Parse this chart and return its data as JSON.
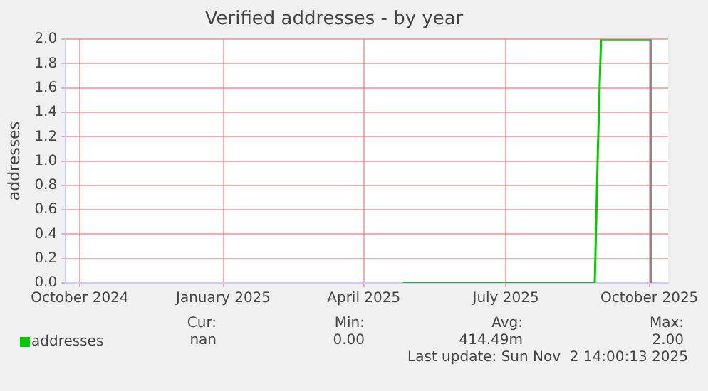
{
  "chart_data": {
    "type": "line",
    "title": "Verified addresses - by year",
    "ylabel": "addresses",
    "series": [
      {
        "name": "addresses",
        "color": "#00cc00",
        "x": [
          "2025-04-26",
          "2025-08-27",
          "2025-08-29",
          "2025-08-31",
          "2025-10-02"
        ],
        "values": [
          0,
          0,
          1.1,
          2.0,
          2.0
        ]
      }
    ],
    "xlim": [
      "2024-09-22",
      "2025-10-13"
    ],
    "xticks": [
      {
        "value": "2024-10-01",
        "label": "October 2024"
      },
      {
        "value": "2025-01-01",
        "label": "January 2025"
      },
      {
        "value": "2025-04-01",
        "label": "April 2025"
      },
      {
        "value": "2025-07-01",
        "label": "July 2025"
      },
      {
        "value": "2025-10-01",
        "label": "October 2025"
      }
    ],
    "ylim": [
      0,
      2
    ],
    "yticks": [
      {
        "value": 0,
        "label": "0.0"
      },
      0.2,
      0.4,
      0.6,
      0.8,
      {
        "value": 1,
        "label": "1.0"
      },
      1.2,
      1.4,
      1.6,
      1.8,
      {
        "value": 2,
        "label": "2.0"
      }
    ],
    "ref_lines": [
      {
        "axis": "x",
        "value": "2025-10-02",
        "color": "#888888"
      }
    ],
    "grid": true,
    "legend": "bottom left",
    "marker": "none",
    "line_style": "solid",
    "annotations": [
      "Cur:",
      "Min:",
      "Avg:",
      "Max:",
      "nan",
      "0.00",
      "414.49m",
      "2.00",
      "Last update: Sun Nov  2 14:00:13 2025"
    ]
  }
}
